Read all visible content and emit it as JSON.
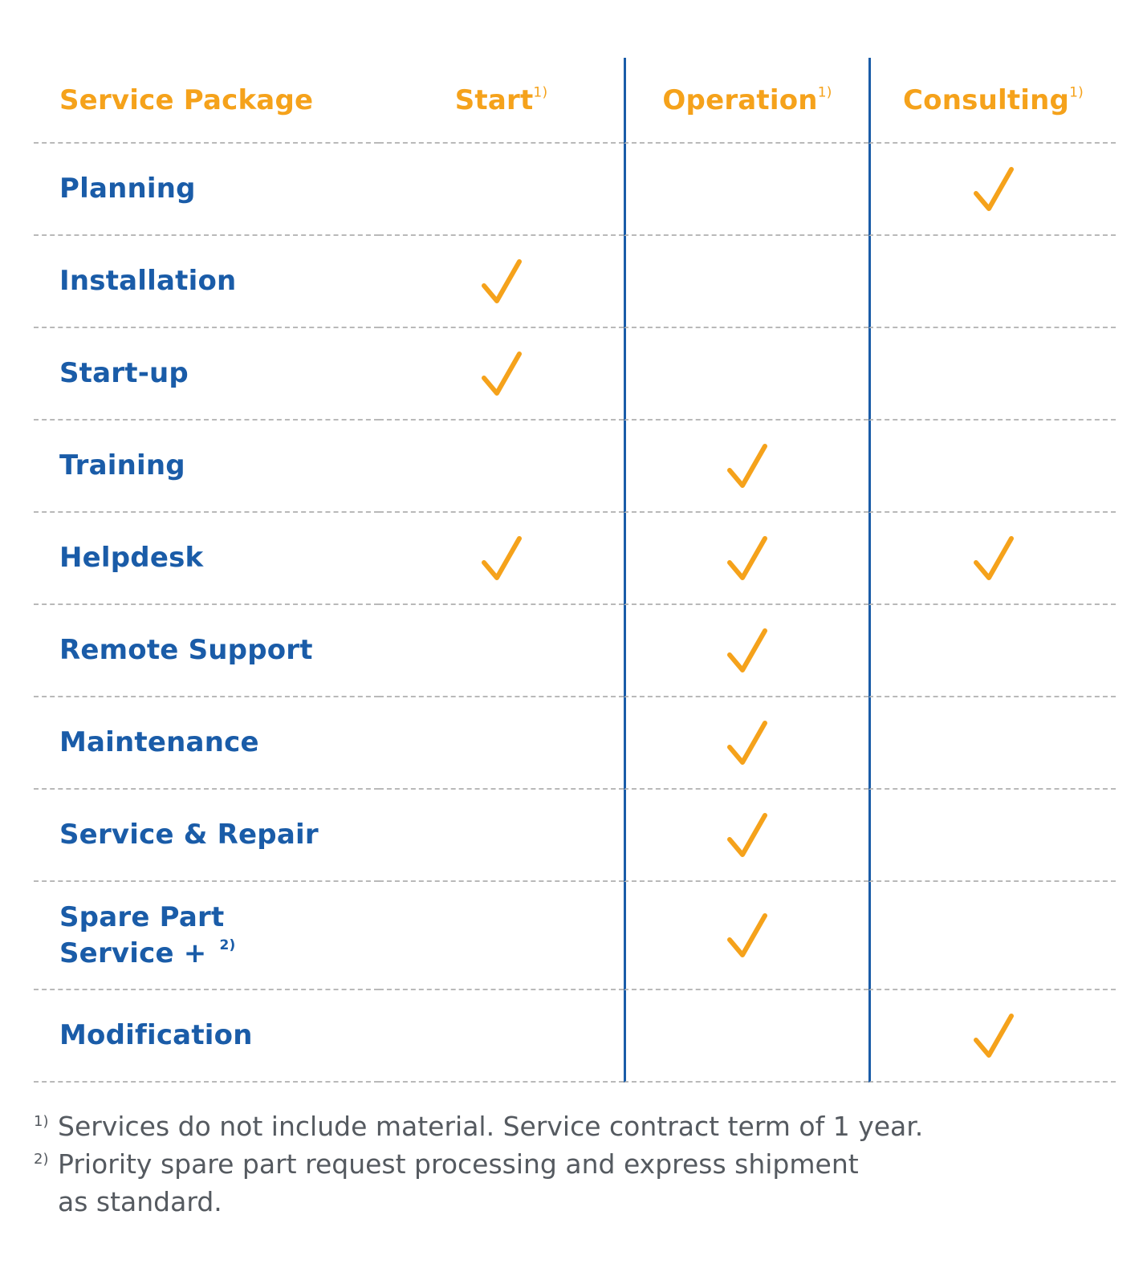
{
  "table": {
    "header": {
      "service_package": "Service Package",
      "columns": [
        {
          "label": "Start",
          "note": "1)"
        },
        {
          "label": "Operation",
          "note": "1)"
        },
        {
          "label": "Consulting",
          "note": "1)"
        }
      ]
    },
    "rows": [
      {
        "label": "Planning",
        "start": false,
        "operation": false,
        "consulting": true
      },
      {
        "label": "Installation",
        "start": true,
        "operation": false,
        "consulting": false
      },
      {
        "label": "Start-up",
        "start": true,
        "operation": false,
        "consulting": false
      },
      {
        "label": "Training",
        "start": false,
        "operation": true,
        "consulting": false
      },
      {
        "label": "Helpdesk",
        "start": true,
        "operation": true,
        "consulting": true
      },
      {
        "label": "Remote Support",
        "start": false,
        "operation": true,
        "consulting": false
      },
      {
        "label": "Maintenance",
        "start": false,
        "operation": true,
        "consulting": false
      },
      {
        "label": "Service & Repair",
        "start": false,
        "operation": true,
        "consulting": false
      },
      {
        "label_line1": "Spare Part",
        "label_line2": "Service +",
        "note": "2)",
        "start": false,
        "operation": true,
        "consulting": false
      },
      {
        "label": "Modification",
        "start": false,
        "operation": false,
        "consulting": true
      }
    ]
  },
  "footnotes": [
    {
      "mark": "1)",
      "text": "Services do not include material. Service contract term of 1 year."
    },
    {
      "mark": "2)",
      "text_line1": "Priority spare part request processing and express shipment",
      "text_line2": "as standard."
    }
  ],
  "colors": {
    "accent_orange": "#f5a21b",
    "brand_blue": "#1a5ca8",
    "footnote_gray": "#555a60"
  },
  "icons": {
    "included": "checkmark-icon"
  }
}
